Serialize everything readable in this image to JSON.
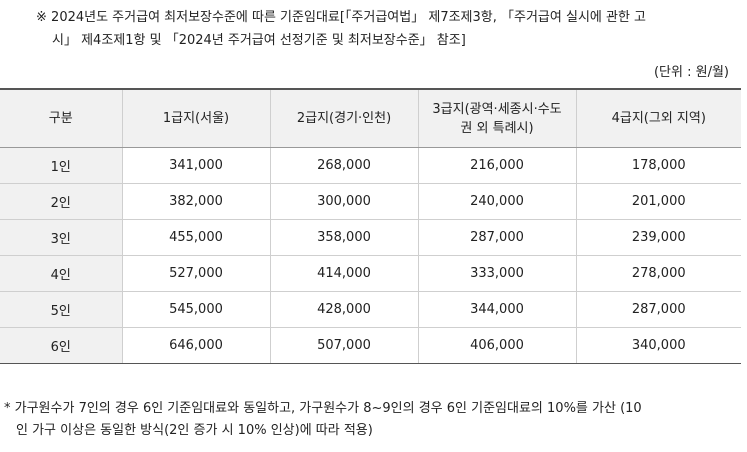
{
  "intro": {
    "mark": "※",
    "line1": "2024년도 주거급여 최저보장수준에 따른 기준임대료[「주거급여법」 제7조제3항, 「주거급여 실시에 관한 고",
    "line2": "시」 제4조제1항 및 「2024년 주거급여 선정기준 및 최저보장수준」 참조]"
  },
  "unit": "(단위 : 원/월)",
  "table": {
    "headers": [
      "구분",
      "1급지(서울)",
      "2급지(경기·인천)",
      "3급지(광역·세종시·수도권 외 특례시)",
      "4급지(그외 지역)"
    ],
    "header3_line1": "3급지(광역·세종시·수도",
    "header3_line2": "권 외 특례시)",
    "rows": [
      [
        "1인",
        "341,000",
        "268,000",
        "216,000",
        "178,000"
      ],
      [
        "2인",
        "382,000",
        "300,000",
        "240,000",
        "201,000"
      ],
      [
        "3인",
        "455,000",
        "358,000",
        "287,000",
        "239,000"
      ],
      [
        "4인",
        "527,000",
        "414,000",
        "333,000",
        "278,000"
      ],
      [
        "5인",
        "545,000",
        "428,000",
        "344,000",
        "287,000"
      ],
      [
        "6인",
        "646,000",
        "507,000",
        "406,000",
        "340,000"
      ]
    ]
  },
  "footnote": {
    "line1": "* 가구원수가 7인의 경우 6인 기준임대료와 동일하고, 가구원수가 8~9인의 경우 6인 기준임대료의 10%를 가산 (10",
    "line2": "인 가구 이상은 동일한 방식(2인 증가 시 10% 인상)에 따라 적용)"
  }
}
